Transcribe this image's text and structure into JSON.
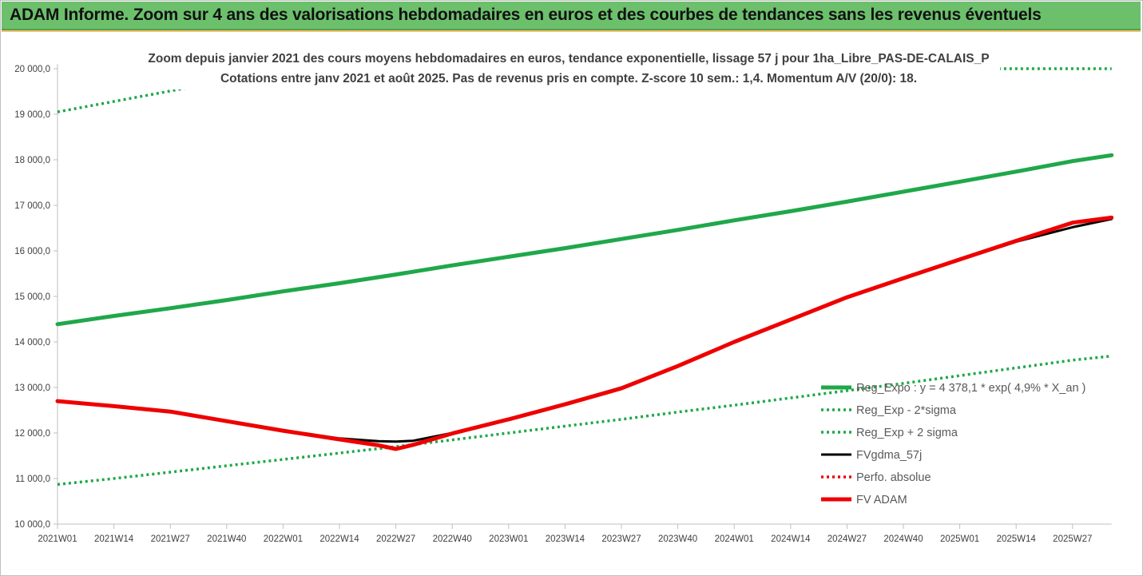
{
  "banner": {
    "title": "ADAM Informe. Zoom sur 4 ans des valorisations hebdomadaires en euros et des courbes de tendances sans les revenus éventuels"
  },
  "colors": {
    "banner_bg": "#6cc06c",
    "green_trend": "#1fa84a",
    "red_adam": "#ee0000",
    "black_gdma": "#000000"
  },
  "chart_data": {
    "type": "line",
    "title": "Zoom depuis janvier 2021 des cours moyens hebdomadaires en euros, tendance exponentielle, lissage 57 j pour 1ha_Libre_PAS-DE-CALAIS_P",
    "subtitle": "Cotations entre janv 2021 et août 2025. Pas de revenus pris en compte. Z-score 10 sem.: 1,4. Momentum A/V (20/0): 18.",
    "ylim": [
      10000,
      20000
    ],
    "y_ticks": [
      "10 000,0",
      "11 000,0",
      "12 000,0",
      "13 000,0",
      "14 000,0",
      "15 000,0",
      "16 000,0",
      "17 000,0",
      "18 000,0",
      "19 000,0",
      "20 000,0"
    ],
    "x_ticks": [
      "2021W01",
      "2021W14",
      "2021W27",
      "2021W40",
      "2022W01",
      "2022W14",
      "2022W27",
      "2022W40",
      "2023W01",
      "2023W14",
      "2023W27",
      "2023W40",
      "2024W01",
      "2024W14",
      "2024W27",
      "2024W40",
      "2025W01",
      "2025W14",
      "2025W27"
    ],
    "grid": false,
    "legend_position": "bottom-right",
    "series": [
      {
        "name": "Reg_Expo : y = 4 378,1 * exp( 4,9% *  X_an )",
        "style": "solid-thick",
        "color": "#1fa84a",
        "points": [
          [
            0,
            14390
          ],
          [
            13,
            14570
          ],
          [
            26,
            14740
          ],
          [
            39,
            14920
          ],
          [
            52,
            15110
          ],
          [
            65,
            15290
          ],
          [
            78,
            15480
          ],
          [
            91,
            15680
          ],
          [
            104,
            15870
          ],
          [
            117,
            16060
          ],
          [
            130,
            16260
          ],
          [
            143,
            16460
          ],
          [
            156,
            16670
          ],
          [
            169,
            16870
          ],
          [
            182,
            17080
          ],
          [
            195,
            17300
          ],
          [
            208,
            17520
          ],
          [
            221,
            17740
          ],
          [
            234,
            17970
          ],
          [
            243,
            18100
          ]
        ]
      },
      {
        "name": "Reg_Exp - 2*sigma",
        "style": "dotted",
        "color": "#1fa84a",
        "points": [
          [
            0,
            10870
          ],
          [
            13,
            11000
          ],
          [
            26,
            11140
          ],
          [
            39,
            11280
          ],
          [
            52,
            11420
          ],
          [
            65,
            11560
          ],
          [
            78,
            11700
          ],
          [
            91,
            11850
          ],
          [
            104,
            12000
          ],
          [
            117,
            12150
          ],
          [
            130,
            12300
          ],
          [
            143,
            12460
          ],
          [
            156,
            12610
          ],
          [
            169,
            12770
          ],
          [
            182,
            12930
          ],
          [
            195,
            13090
          ],
          [
            208,
            13260
          ],
          [
            221,
            13430
          ],
          [
            234,
            13600
          ],
          [
            243,
            13690
          ]
        ]
      },
      {
        "name": "Reg_Exp + 2 sigma",
        "style": "dotted",
        "color": "#1fa84a",
        "points": [
          [
            0,
            19050
          ],
          [
            13,
            19280
          ],
          [
            26,
            19510
          ],
          [
            39,
            19750
          ],
          [
            52,
            20000
          ],
          [
            225,
            20000
          ],
          [
            243,
            20000
          ]
        ]
      },
      {
        "name": "FVgdma_57j",
        "style": "solid",
        "color": "#000000",
        "points": [
          [
            0,
            12700
          ],
          [
            13,
            12600
          ],
          [
            26,
            12480
          ],
          [
            39,
            12270
          ],
          [
            52,
            12060
          ],
          [
            65,
            11880
          ],
          [
            74,
            11820
          ],
          [
            78,
            11810
          ],
          [
            82,
            11830
          ],
          [
            91,
            12000
          ],
          [
            104,
            12300
          ],
          [
            117,
            12640
          ],
          [
            130,
            13000
          ],
          [
            143,
            13480
          ],
          [
            156,
            14000
          ],
          [
            169,
            14480
          ],
          [
            182,
            14980
          ],
          [
            195,
            15400
          ],
          [
            208,
            15800
          ],
          [
            221,
            16200
          ],
          [
            234,
            16520
          ],
          [
            243,
            16700
          ]
        ]
      },
      {
        "name": "Perfo. absolue",
        "style": "dotted",
        "color": "#ee0000",
        "points": []
      },
      {
        "name": "FV ADAM",
        "style": "solid-thick",
        "color": "#ee0000",
        "points": [
          [
            0,
            12700
          ],
          [
            13,
            12590
          ],
          [
            26,
            12470
          ],
          [
            39,
            12260
          ],
          [
            52,
            12050
          ],
          [
            65,
            11860
          ],
          [
            74,
            11730
          ],
          [
            78,
            11650
          ],
          [
            82,
            11740
          ],
          [
            91,
            11990
          ],
          [
            104,
            12300
          ],
          [
            117,
            12630
          ],
          [
            130,
            12980
          ],
          [
            143,
            13470
          ],
          [
            156,
            14000
          ],
          [
            169,
            14490
          ],
          [
            182,
            14980
          ],
          [
            195,
            15400
          ],
          [
            208,
            15810
          ],
          [
            221,
            16220
          ],
          [
            234,
            16620
          ],
          [
            243,
            16730
          ]
        ]
      }
    ]
  }
}
